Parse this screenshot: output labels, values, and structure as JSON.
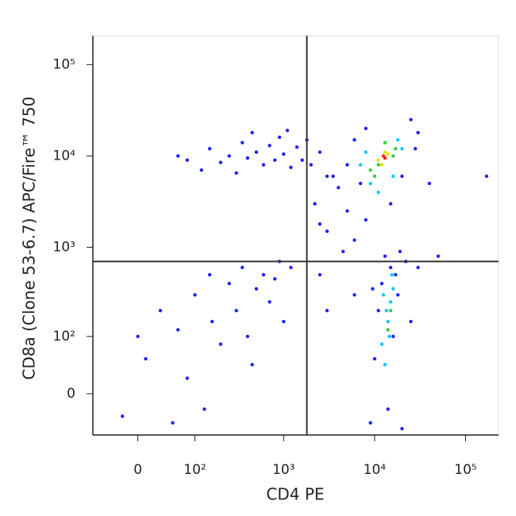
{
  "chart_data": {
    "type": "scatter",
    "xlabel": "CD4 PE",
    "ylabel": "CD8a (Clone 53-6.7) APC/Fire™ 750",
    "xscale": "biexponential",
    "yscale": "biexponential",
    "xlim": [
      -70,
      230000
    ],
    "ylim": [
      -62,
      207000
    ],
    "xticks": [
      0,
      {
        "value": 100,
        "label": "10²"
      },
      {
        "value": 1000,
        "label": "10³"
      },
      {
        "value": 10000,
        "label": "10⁴"
      },
      {
        "value": 100000,
        "label": "10⁵"
      }
    ],
    "yticks": [
      0,
      {
        "value": 100,
        "label": "10²"
      },
      {
        "value": 1000,
        "label": "10³"
      },
      {
        "value": 10000,
        "label": "10⁴"
      },
      {
        "value": 100000,
        "label": "10⁵"
      }
    ],
    "gates": {
      "x": 1800,
      "y": 700,
      "color": "#333333"
    },
    "series": [
      {
        "color": "#1f1fff",
        "x": [
          80,
          120,
          150,
          200,
          250,
          300,
          350,
          400,
          500,
          600,
          700,
          800,
          900,
          1000,
          1200,
          1400,
          1600,
          1800,
          2000,
          2500,
          3000,
          60,
          450,
          1100,
          -20,
          10,
          30,
          60,
          80,
          100,
          130,
          160,
          200,
          250,
          300,
          350,
          400,
          500,
          600,
          700,
          800,
          1000,
          1200,
          50,
          0,
          150,
          450,
          900,
          2200,
          3000,
          4000,
          5000,
          6000,
          7000,
          3500,
          8000,
          2500,
          4500,
          9000,
          10000,
          11000,
          12000,
          14000,
          15000,
          16000,
          18000,
          20000,
          22000,
          13000,
          17000,
          25000,
          9500,
          19000,
          40000,
          170000,
          30000,
          50000,
          6000,
          3000,
          2500,
          6000,
          8000,
          25000,
          30000,
          20000,
          5000,
          15000,
          28000
        ],
        "values": [
          9000,
          7000,
          12000,
          8500,
          10000,
          6500,
          14000,
          9500,
          11000,
          8000,
          13000,
          9000,
          16000,
          10500,
          7500,
          12500,
          9000,
          15000,
          8000,
          11000,
          6000,
          10000,
          18000,
          19000,
          -30,
          50,
          200,
          120,
          20,
          300,
          -20,
          150,
          80,
          400,
          200,
          600,
          100,
          350,
          500,
          250,
          450,
          150,
          600,
          -40,
          100,
          500,
          40,
          700,
          3000,
          1500,
          4500,
          2500,
          1200,
          5000,
          6000,
          2000,
          1800,
          900,
          -40,
          50,
          200,
          400,
          -20,
          600,
          100,
          300,
          -50,
          700,
          800,
          500,
          150,
          350,
          900,
          5000,
          6000,
          600,
          800,
          300,
          200,
          500,
          15000,
          20000,
          25000,
          18000,
          6000,
          8000,
          3000,
          12000
        ]
      },
      {
        "color": "#00c8ff",
        "x": [
          12000,
          14000,
          15000,
          13000,
          16000,
          14500,
          13500,
          15500,
          12500,
          7000,
          9000,
          18000,
          20000,
          8000,
          16000,
          11000
        ],
        "values": [
          80,
          150,
          250,
          40,
          350,
          100,
          200,
          500,
          300,
          8000,
          5000,
          15000,
          12000,
          11000,
          6000,
          4000
        ]
      },
      {
        "color": "#30d040",
        "x": [
          14000,
          15000,
          9000,
          10000,
          16000,
          13000,
          17000,
          11000
        ],
        "values": [
          120,
          200,
          7000,
          6000,
          10000,
          14000,
          12000,
          8000
        ]
      },
      {
        "color": "#e8e000",
        "x": [
          11000,
          13000,
          12000,
          14000
        ],
        "values": [
          9000,
          11000,
          8000,
          10500
        ]
      },
      {
        "color": "#ff2000",
        "x": [
          12500,
          13000
        ],
        "values": [
          10000,
          9500
        ]
      }
    ]
  }
}
